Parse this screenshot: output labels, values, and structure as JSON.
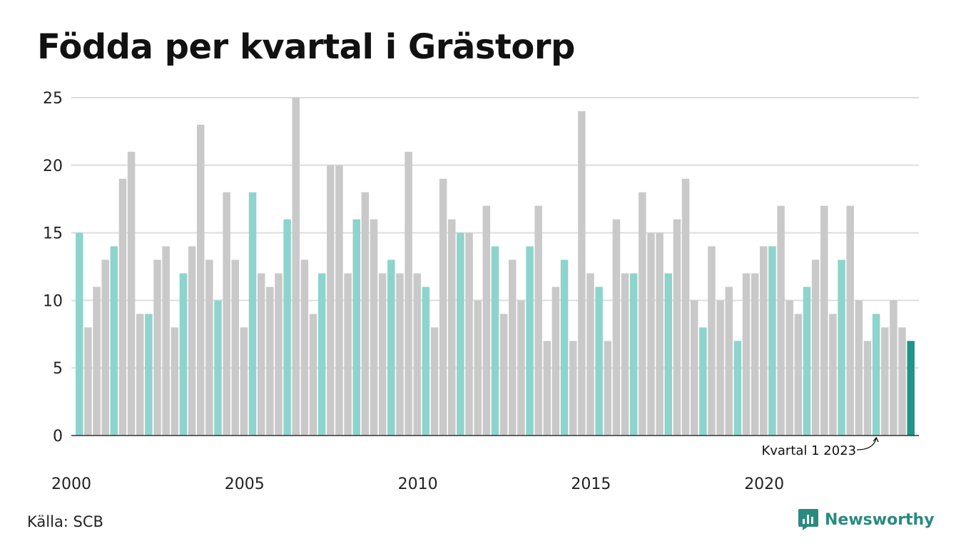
{
  "title": "Födda per kvartal i Grästorp",
  "source": "Källa: SCB",
  "brand": "Newsworthy",
  "colors": {
    "first_quarter": "#8dd4cc",
    "other_quarter": "#c9c9c9",
    "latest": "#1f9488",
    "grid": "#dddddd",
    "axis": "#333333",
    "brand": "#2a8a80"
  },
  "chart_data": {
    "type": "bar",
    "title": "Födda per kvartal i Grästorp",
    "ylim": [
      0,
      25
    ],
    "yticks": [
      0,
      5,
      10,
      15,
      20,
      25
    ],
    "xtick_labels": [
      "2000",
      "2005",
      "2010",
      "2015",
      "2020"
    ],
    "grid": true,
    "start_year": 2000,
    "annotation": "Kvartal 1 2023",
    "values": [
      15,
      8,
      11,
      13,
      14,
      19,
      21,
      9,
      9,
      13,
      14,
      8,
      12,
      14,
      23,
      13,
      10,
      18,
      13,
      8,
      18,
      12,
      11,
      12,
      16,
      25,
      13,
      9,
      12,
      20,
      20,
      12,
      16,
      18,
      16,
      12,
      13,
      12,
      21,
      12,
      11,
      8,
      19,
      16,
      15,
      15,
      10,
      17,
      14,
      9,
      13,
      10,
      14,
      17,
      7,
      11,
      13,
      7,
      24,
      12,
      11,
      7,
      16,
      12,
      12,
      18,
      15,
      15,
      12,
      16,
      19,
      10,
      8,
      14,
      10,
      11,
      7,
      12,
      12,
      14,
      14,
      17,
      10,
      9,
      11,
      13,
      17,
      9,
      13,
      17,
      10,
      7,
      9,
      8,
      10,
      8,
      7
    ]
  }
}
